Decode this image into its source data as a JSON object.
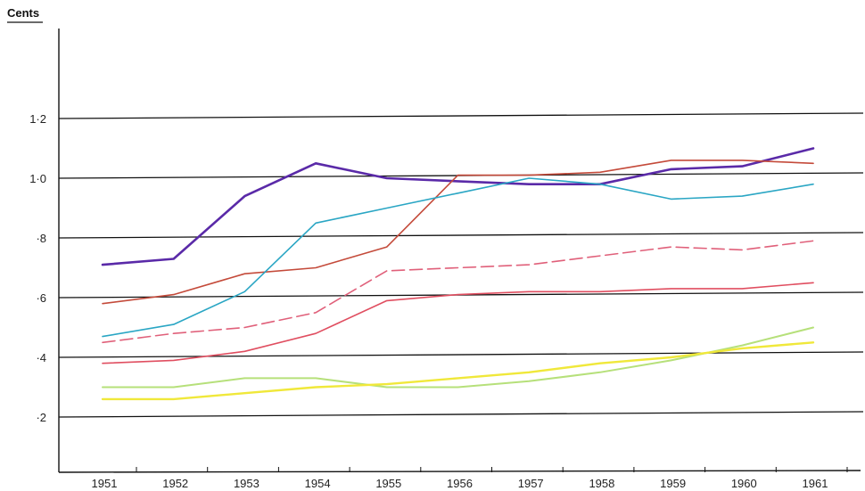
{
  "chart_data": {
    "type": "line",
    "title": "",
    "xlabel": "",
    "ylabel": "Cents",
    "ylim": [
      0,
      1.3
    ],
    "xlim": [
      1950.5,
      1961.5
    ],
    "grid": "horizontal",
    "y_ticks": [
      {
        "value": 1.2,
        "label": "1·2"
      },
      {
        "value": 1.0,
        "label": "1·0"
      },
      {
        "value": 0.8,
        "label": "·8"
      },
      {
        "value": 0.6,
        "label": "·6"
      },
      {
        "value": 0.4,
        "label": "·4"
      },
      {
        "value": 0.2,
        "label": "·2"
      }
    ],
    "x": [
      1951,
      1952,
      1953,
      1954,
      1955,
      1956,
      1957,
      1958,
      1959,
      1960,
      1961
    ],
    "x_tick_labels": [
      "1951",
      "1952",
      "1953",
      "1954",
      "1955",
      "1956",
      "1957",
      "1958",
      "1959",
      "1960",
      "1961"
    ],
    "series": [
      {
        "color": "#5a2aa8",
        "dash": false,
        "width": 2.6,
        "values": [
          0.71,
          0.73,
          0.94,
          1.05,
          1.0,
          0.99,
          0.98,
          0.98,
          1.03,
          1.04,
          1.1
        ]
      },
      {
        "color": "#c44a3a",
        "dash": false,
        "width": 1.6,
        "values": [
          0.58,
          0.61,
          0.68,
          0.7,
          0.77,
          1.01,
          1.01,
          1.02,
          1.06,
          1.06,
          1.05
        ]
      },
      {
        "color": "#2aa6c4",
        "dash": false,
        "width": 1.6,
        "values": [
          0.47,
          0.51,
          0.62,
          0.85,
          0.9,
          0.95,
          1.0,
          0.98,
          0.93,
          0.94,
          0.98
        ]
      },
      {
        "color": "#e0607a",
        "dash": true,
        "width": 1.6,
        "values": [
          0.45,
          0.48,
          0.5,
          0.55,
          0.69,
          0.7,
          0.71,
          0.74,
          0.77,
          0.76,
          0.79
        ]
      },
      {
        "color": "#e04e60",
        "dash": false,
        "width": 1.6,
        "values": [
          0.38,
          0.39,
          0.42,
          0.48,
          0.59,
          0.61,
          0.62,
          0.62,
          0.63,
          0.63,
          0.65
        ]
      },
      {
        "color": "#b6e07a",
        "dash": false,
        "width": 2.0,
        "values": [
          0.3,
          0.3,
          0.33,
          0.33,
          0.3,
          0.3,
          0.32,
          0.35,
          0.39,
          0.44,
          0.5
        ]
      },
      {
        "color": "#f0e83a",
        "dash": false,
        "width": 2.4,
        "values": [
          0.26,
          0.26,
          0.28,
          0.3,
          0.31,
          0.33,
          0.35,
          0.38,
          0.4,
          0.43,
          0.45
        ]
      }
    ]
  }
}
